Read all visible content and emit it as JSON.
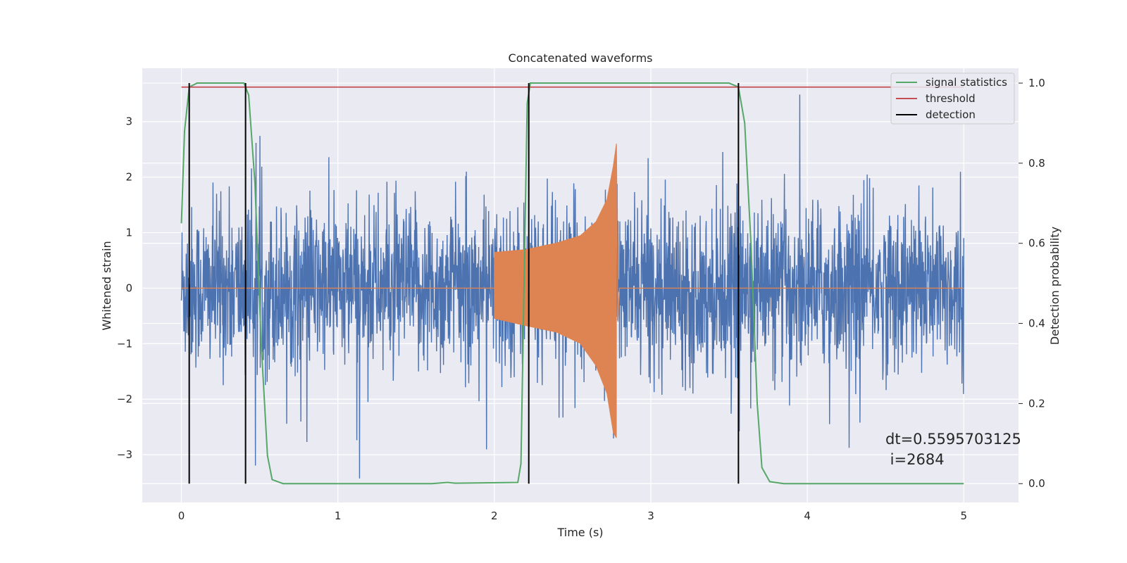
{
  "chart_data": {
    "type": "line",
    "title": "Concatenated waveforms",
    "xlabel": "Time (s)",
    "ylabel": "Whitened strain",
    "ylabel_right": "Detection probability",
    "xlim": [
      -0.25,
      5.35
    ],
    "ylim": [
      -3.86,
      3.96
    ],
    "ylim_right": [
      -0.047,
      1.037
    ],
    "x_ticks": [
      "0",
      "1",
      "2",
      "3",
      "4",
      "5"
    ],
    "y_ticks": [
      "3",
      "2",
      "1",
      "0",
      "−1",
      "−2",
      "−3"
    ],
    "y_ticks_right": [
      "1.0",
      "0.8",
      "0.6",
      "0.4",
      "0.2",
      "0.0"
    ],
    "grid": true,
    "legend_position": "top-right",
    "series": [
      {
        "name": "",
        "axis": "left",
        "color": "#4c72b0",
        "kind": "whitened noise strain",
        "x_range": [
          0,
          5
        ],
        "amplitude_typical": 1.0,
        "amplitude_peak": 3.6
      },
      {
        "name": "",
        "axis": "left",
        "color": "#dd8452",
        "kind": "chirp signal",
        "x_range": [
          2.0,
          2.78
        ],
        "envelope": [
          [
            2.0,
            0.65
          ],
          [
            2.2,
            0.7
          ],
          [
            2.4,
            0.82
          ],
          [
            2.55,
            0.95
          ],
          [
            2.65,
            1.2
          ],
          [
            2.72,
            1.6
          ],
          [
            2.76,
            2.2
          ],
          [
            2.78,
            2.6
          ]
        ],
        "envelope_negative": [
          [
            2.0,
            -0.55
          ],
          [
            2.2,
            -0.68
          ],
          [
            2.4,
            -0.8
          ],
          [
            2.55,
            -1.0
          ],
          [
            2.65,
            -1.4
          ],
          [
            2.72,
            -1.9
          ],
          [
            2.76,
            -2.6
          ],
          [
            2.78,
            -2.7
          ]
        ]
      },
      {
        "name": "signal statistics",
        "axis": "right",
        "color": "#55a868",
        "points": [
          [
            0,
            0.65
          ],
          [
            0.02,
            0.88
          ],
          [
            0.05,
            0.99
          ],
          [
            0.1,
            1.0
          ],
          [
            0.4,
            1.0
          ],
          [
            0.43,
            0.97
          ],
          [
            0.47,
            0.75
          ],
          [
            0.51,
            0.35
          ],
          [
            0.55,
            0.07
          ],
          [
            0.58,
            0.01
          ],
          [
            0.65,
            0.0
          ],
          [
            1.6,
            0.0
          ],
          [
            1.7,
            0.003
          ],
          [
            1.75,
            0.001
          ],
          [
            2.15,
            0.003
          ],
          [
            2.17,
            0.05
          ],
          [
            2.19,
            0.5
          ],
          [
            2.21,
            0.95
          ],
          [
            2.23,
            1.0
          ],
          [
            3.5,
            1.0
          ],
          [
            3.56,
            0.99
          ],
          [
            3.6,
            0.9
          ],
          [
            3.64,
            0.6
          ],
          [
            3.68,
            0.2
          ],
          [
            3.71,
            0.04
          ],
          [
            3.76,
            0.005
          ],
          [
            3.85,
            0.0
          ],
          [
            5.0,
            0.0
          ]
        ]
      },
      {
        "name": "threshold",
        "axis": "right",
        "color": "#c44e52",
        "x_range": [
          0,
          5
        ],
        "value": 0.99
      },
      {
        "name": "detection",
        "axis": "right",
        "color": "#000000",
        "x_values": [
          0.05,
          0.41,
          2.22,
          3.56
        ],
        "range": [
          0,
          1
        ]
      }
    ],
    "annotation": {
      "line1": "dt=0.5595703125",
      "line2": " i=2684"
    }
  }
}
